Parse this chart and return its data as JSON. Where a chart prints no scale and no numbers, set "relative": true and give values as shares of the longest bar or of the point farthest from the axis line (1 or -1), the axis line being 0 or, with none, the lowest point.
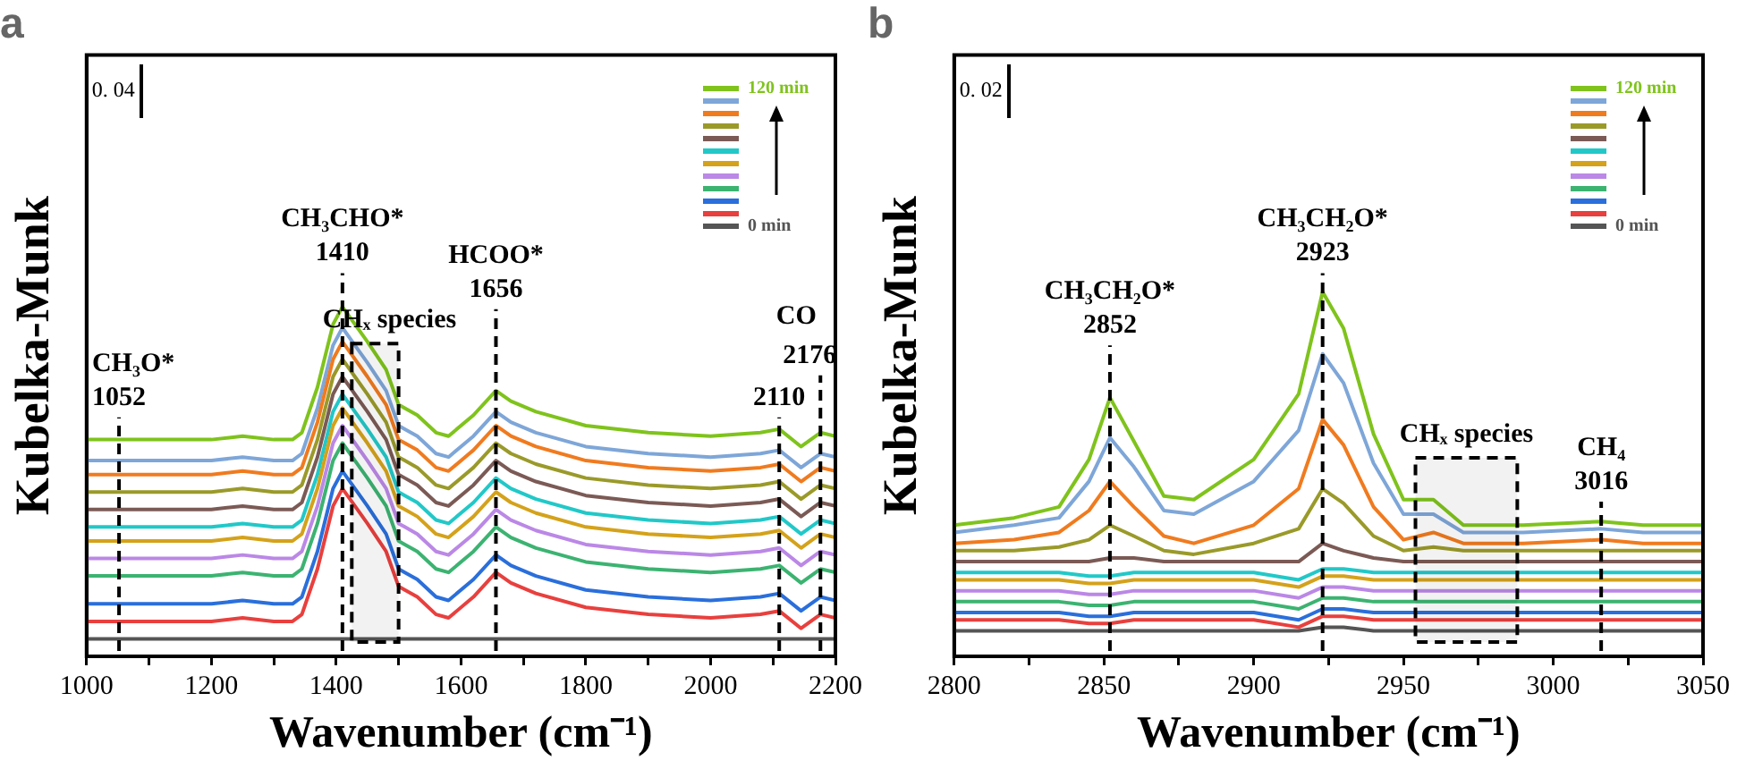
{
  "chart_data": [
    {
      "type": "line",
      "title": "a",
      "xlabel": "Wavenumber (cm⁻¹)",
      "ylabel": "Kubelka-Munk",
      "relative": true,
      "marker": "none",
      "grid": false,
      "legend": "top right",
      "xlim": [
        1000,
        2200
      ],
      "xticks": [
        1000,
        {
          "value": 1100,
          "label": null
        },
        1200,
        {
          "value": 1300,
          "label": null
        },
        1400,
        {
          "value": 1500,
          "label": null
        },
        1600,
        {
          "value": 1700,
          "label": null
        },
        1800,
        {
          "value": 1900,
          "label": null
        },
        2000,
        {
          "value": 2100,
          "label": null
        },
        2200
      ],
      "x": [
        1000,
        1050,
        1100,
        1200,
        1250,
        1300,
        1330,
        1345,
        1370,
        1395,
        1410,
        1430,
        1450,
        1480,
        1500,
        1510,
        1530,
        1560,
        1580,
        1620,
        1656,
        1680,
        1720,
        1800,
        1900,
        2000,
        2080,
        2110,
        2145,
        2176,
        2200
      ],
      "series": [
        {
          "name": "120 min",
          "color": "#7fc31c",
          "values": [
            0.62,
            0.62,
            0.62,
            0.62,
            0.63,
            0.62,
            0.62,
            0.64,
            0.77,
            0.95,
            1,
            0.95,
            0.9,
            0.82,
            0.72,
            0.71,
            0.69,
            0.64,
            0.63,
            0.69,
            0.76,
            0.73,
            0.7,
            0.66,
            0.64,
            0.63,
            0.64,
            0.65,
            0.6,
            0.64,
            0.63
          ]
        },
        {
          "color": "#7ea6d8",
          "values": [
            0.56,
            0.56,
            0.56,
            0.56,
            0.57,
            0.56,
            0.56,
            0.58,
            0.71,
            0.89,
            0.94,
            0.89,
            0.84,
            0.76,
            0.66,
            0.65,
            0.63,
            0.58,
            0.57,
            0.63,
            0.7,
            0.67,
            0.64,
            0.6,
            0.58,
            0.57,
            0.58,
            0.59,
            0.54,
            0.58,
            0.57
          ]
        },
        {
          "color": "#f07b1f",
          "values": [
            0.52,
            0.52,
            0.52,
            0.52,
            0.53,
            0.52,
            0.52,
            0.54,
            0.67,
            0.85,
            0.9,
            0.85,
            0.8,
            0.72,
            0.62,
            0.61,
            0.59,
            0.54,
            0.53,
            0.59,
            0.66,
            0.63,
            0.6,
            0.56,
            0.54,
            0.53,
            0.54,
            0.55,
            0.5,
            0.54,
            0.53
          ]
        },
        {
          "color": "#9a9a2a",
          "values": [
            0.47,
            0.47,
            0.47,
            0.47,
            0.48,
            0.47,
            0.47,
            0.49,
            0.62,
            0.8,
            0.85,
            0.8,
            0.75,
            0.67,
            0.57,
            0.56,
            0.54,
            0.49,
            0.48,
            0.54,
            0.61,
            0.58,
            0.55,
            0.51,
            0.49,
            0.48,
            0.49,
            0.5,
            0.45,
            0.49,
            0.48
          ]
        },
        {
          "color": "#7b5a55",
          "values": [
            0.42,
            0.42,
            0.42,
            0.42,
            0.43,
            0.42,
            0.42,
            0.44,
            0.57,
            0.75,
            0.8,
            0.75,
            0.7,
            0.62,
            0.52,
            0.51,
            0.49,
            0.44,
            0.43,
            0.49,
            0.56,
            0.53,
            0.5,
            0.46,
            0.44,
            0.43,
            0.44,
            0.45,
            0.4,
            0.44,
            0.43
          ]
        },
        {
          "color": "#22c8c8",
          "values": [
            0.37,
            0.37,
            0.37,
            0.37,
            0.38,
            0.37,
            0.37,
            0.39,
            0.52,
            0.7,
            0.75,
            0.7,
            0.65,
            0.57,
            0.47,
            0.46,
            0.44,
            0.39,
            0.38,
            0.44,
            0.51,
            0.48,
            0.45,
            0.41,
            0.39,
            0.38,
            0.39,
            0.4,
            0.35,
            0.39,
            0.38
          ]
        },
        {
          "color": "#d4a21b",
          "values": [
            0.33,
            0.33,
            0.33,
            0.33,
            0.34,
            0.33,
            0.33,
            0.35,
            0.48,
            0.66,
            0.71,
            0.66,
            0.61,
            0.53,
            0.43,
            0.42,
            0.4,
            0.35,
            0.34,
            0.4,
            0.47,
            0.44,
            0.41,
            0.37,
            0.35,
            0.34,
            0.35,
            0.36,
            0.31,
            0.35,
            0.34
          ]
        },
        {
          "color": "#bb88e6",
          "values": [
            0.28,
            0.28,
            0.28,
            0.28,
            0.29,
            0.28,
            0.28,
            0.3,
            0.43,
            0.61,
            0.66,
            0.61,
            0.56,
            0.48,
            0.38,
            0.37,
            0.35,
            0.3,
            0.29,
            0.35,
            0.42,
            0.39,
            0.36,
            0.32,
            0.3,
            0.29,
            0.3,
            0.31,
            0.26,
            0.3,
            0.29
          ]
        },
        {
          "color": "#3cb371",
          "values": [
            0.23,
            0.23,
            0.23,
            0.23,
            0.24,
            0.23,
            0.23,
            0.25,
            0.38,
            0.56,
            0.61,
            0.56,
            0.51,
            0.43,
            0.33,
            0.32,
            0.3,
            0.25,
            0.24,
            0.3,
            0.37,
            0.34,
            0.31,
            0.27,
            0.25,
            0.24,
            0.25,
            0.26,
            0.21,
            0.25,
            0.24
          ]
        },
        {
          "color": "#2a6fdb",
          "values": [
            0.15,
            0.15,
            0.15,
            0.15,
            0.16,
            0.15,
            0.15,
            0.17,
            0.3,
            0.48,
            0.53,
            0.48,
            0.43,
            0.35,
            0.25,
            0.24,
            0.22,
            0.17,
            0.16,
            0.22,
            0.29,
            0.26,
            0.23,
            0.19,
            0.17,
            0.16,
            0.17,
            0.18,
            0.13,
            0.17,
            0.16
          ]
        },
        {
          "color": "#e8403e",
          "values": [
            0.1,
            0.1,
            0.1,
            0.1,
            0.11,
            0.1,
            0.1,
            0.12,
            0.25,
            0.43,
            0.48,
            0.43,
            0.38,
            0.3,
            0.2,
            0.19,
            0.17,
            0.12,
            0.11,
            0.17,
            0.24,
            0.21,
            0.18,
            0.14,
            0.12,
            0.11,
            0.12,
            0.13,
            0.08,
            0.12,
            0.11
          ]
        },
        {
          "name": "0 min",
          "color": "#555555",
          "values": [
            0.05,
            0.05,
            0.05,
            0.05,
            0.05,
            0.05,
            0.05,
            0.05,
            0.05,
            0.05,
            0.05,
            0.05,
            0.05,
            0.05,
            0.05,
            0.05,
            0.05,
            0.05,
            0.05,
            0.05,
            0.05,
            0.05,
            0.05,
            0.05,
            0.05,
            0.05,
            0.05,
            0.05,
            0.05,
            0.05,
            0.05
          ]
        }
      ],
      "ref_lines": [
        {
          "axis": "x",
          "value": 1052,
          "label": "1052",
          "line_style": "dashed"
        },
        {
          "axis": "x",
          "value": 1410,
          "label": "1410",
          "line_style": "dashed"
        },
        {
          "axis": "x",
          "value": 1656,
          "label": "1656",
          "line_style": "dashed"
        },
        {
          "axis": "x",
          "value": 2110,
          "label": "2110",
          "line_style": "dashed"
        },
        {
          "axis": "x",
          "value": 2176,
          "label": "2176",
          "line_style": "dashed"
        }
      ],
      "bands": [
        {
          "axis": "x",
          "from": 1425,
          "to": 1500,
          "label": "CHₓ species"
        }
      ],
      "annotations": [
        "0. 04",
        "CH₃O*",
        "CH₃CHO*",
        "HCOO*",
        "CO"
      ]
    },
    {
      "type": "line",
      "title": "b",
      "xlabel": "Wavenumber (cm⁻¹)",
      "ylabel": "Kubelka-Munk",
      "relative": true,
      "marker": "none",
      "grid": false,
      "legend": "top right",
      "xlim": [
        2800,
        3050
      ],
      "xticks": [
        2800,
        {
          "value": 2825,
          "label": null
        },
        2850,
        {
          "value": 2875,
          "label": null
        },
        2900,
        {
          "value": 2925,
          "label": null
        },
        2950,
        {
          "value": 2975,
          "label": null
        },
        3000,
        {
          "value": 3025,
          "label": null
        },
        3050
      ],
      "x": [
        2800,
        2820,
        2835,
        2845,
        2852,
        2860,
        2870,
        2880,
        2900,
        2915,
        2923,
        2930,
        2940,
        2950,
        2960,
        2970,
        2990,
        3016,
        3030,
        3050
      ],
      "series": [
        {
          "name": "120 min",
          "color": "#7fc31c",
          "values": [
            0.36,
            0.38,
            0.41,
            0.54,
            0.71,
            0.59,
            0.44,
            0.43,
            0.54,
            0.72,
            1,
            0.9,
            0.61,
            0.43,
            0.43,
            0.36,
            0.36,
            0.37,
            0.36,
            0.36
          ]
        },
        {
          "color": "#7ea6d8",
          "values": [
            0.34,
            0.36,
            0.38,
            0.48,
            0.6,
            0.52,
            0.4,
            0.39,
            0.48,
            0.62,
            0.83,
            0.75,
            0.53,
            0.39,
            0.39,
            0.34,
            0.34,
            0.35,
            0.34,
            0.34
          ]
        },
        {
          "color": "#f07b1f",
          "values": [
            0.31,
            0.32,
            0.34,
            0.4,
            0.48,
            0.41,
            0.33,
            0.31,
            0.36,
            0.46,
            0.65,
            0.58,
            0.41,
            0.32,
            0.34,
            0.31,
            0.31,
            0.32,
            0.31,
            0.31
          ]
        },
        {
          "color": "#9a9a2a",
          "values": [
            0.29,
            0.29,
            0.3,
            0.32,
            0.36,
            0.33,
            0.29,
            0.28,
            0.31,
            0.35,
            0.46,
            0.42,
            0.33,
            0.29,
            0.3,
            0.29,
            0.29,
            0.29,
            0.29,
            0.29
          ]
        },
        {
          "color": "#7b5a55",
          "values": [
            0.26,
            0.26,
            0.26,
            0.26,
            0.27,
            0.27,
            0.26,
            0.26,
            0.26,
            0.26,
            0.31,
            0.29,
            0.27,
            0.26,
            0.26,
            0.26,
            0.26,
            0.26,
            0.26,
            0.26
          ]
        },
        {
          "color": "#22c8c8",
          "values": [
            0.23,
            0.23,
            0.23,
            0.22,
            0.22,
            0.23,
            0.23,
            0.23,
            0.23,
            0.21,
            0.24,
            0.24,
            0.23,
            0.23,
            0.23,
            0.23,
            0.23,
            0.23,
            0.23,
            0.23
          ]
        },
        {
          "color": "#d4a21b",
          "values": [
            0.21,
            0.21,
            0.21,
            0.2,
            0.2,
            0.21,
            0.21,
            0.21,
            0.21,
            0.19,
            0.22,
            0.22,
            0.21,
            0.21,
            0.21,
            0.21,
            0.21,
            0.21,
            0.21,
            0.21
          ]
        },
        {
          "color": "#bb88e6",
          "values": [
            0.18,
            0.18,
            0.18,
            0.17,
            0.17,
            0.18,
            0.18,
            0.18,
            0.18,
            0.16,
            0.19,
            0.19,
            0.18,
            0.18,
            0.18,
            0.18,
            0.18,
            0.18,
            0.18,
            0.18
          ]
        },
        {
          "color": "#3cb371",
          "values": [
            0.15,
            0.15,
            0.15,
            0.14,
            0.14,
            0.15,
            0.15,
            0.15,
            0.15,
            0.13,
            0.16,
            0.16,
            0.15,
            0.15,
            0.15,
            0.15,
            0.15,
            0.15,
            0.15,
            0.15
          ]
        },
        {
          "color": "#2a6fdb",
          "values": [
            0.12,
            0.12,
            0.12,
            0.11,
            0.11,
            0.12,
            0.12,
            0.12,
            0.12,
            0.1,
            0.13,
            0.13,
            0.12,
            0.12,
            0.12,
            0.12,
            0.12,
            0.12,
            0.12,
            0.12
          ]
        },
        {
          "color": "#e8403e",
          "values": [
            0.1,
            0.1,
            0.1,
            0.09,
            0.09,
            0.1,
            0.1,
            0.1,
            0.1,
            0.08,
            0.11,
            0.11,
            0.1,
            0.1,
            0.1,
            0.1,
            0.1,
            0.1,
            0.1,
            0.1
          ]
        },
        {
          "name": "0 min",
          "color": "#555555",
          "values": [
            0.07,
            0.07,
            0.07,
            0.07,
            0.07,
            0.07,
            0.07,
            0.07,
            0.07,
            0.07,
            0.08,
            0.08,
            0.07,
            0.07,
            0.07,
            0.07,
            0.07,
            0.07,
            0.07,
            0.07
          ]
        }
      ],
      "ref_lines": [
        {
          "axis": "x",
          "value": 2852,
          "label": "2852",
          "line_style": "dashed"
        },
        {
          "axis": "x",
          "value": 2923,
          "label": "2923",
          "line_style": "dashed"
        },
        {
          "axis": "x",
          "value": 3016,
          "label": "3016",
          "line_style": "dashed"
        }
      ],
      "bands": [
        {
          "axis": "x",
          "from": 2954,
          "to": 2988,
          "label": "CHₓ species"
        }
      ],
      "annotations": [
        "0. 02",
        "CH₃CH₂O*",
        "CH₃CH₂O*",
        "CH₄"
      ]
    }
  ]
}
